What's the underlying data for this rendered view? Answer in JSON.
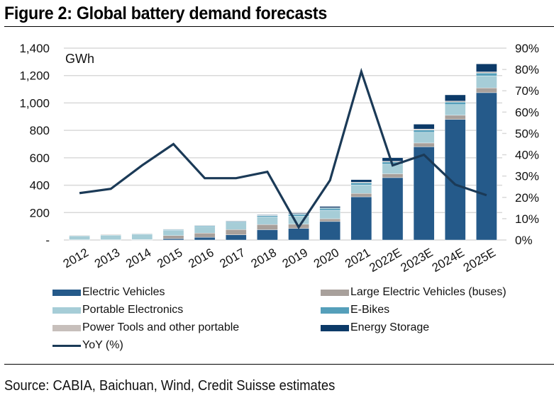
{
  "header": {
    "title": "Figure 2: Global battery demand forecasts"
  },
  "footer": {
    "source": "Source: CABIA, Baichuan, Wind, Credit Suisse estimates"
  },
  "chart_data": {
    "type": "bar",
    "stacked": true,
    "title": "Figure 2: Global battery demand forecasts",
    "unit_label": "GWh",
    "categories": [
      "2012",
      "2013",
      "2014",
      "2015",
      "2016",
      "2017",
      "2018",
      "2019",
      "2020",
      "2021",
      "2022E",
      "2023E",
      "2024E",
      "2025E"
    ],
    "y_left": {
      "range": [
        0,
        1400
      ],
      "ticks": [
        0,
        200,
        400,
        600,
        800,
        1000,
        1200,
        1400
      ],
      "tick_labels": [
        "-",
        "200",
        "400",
        "600",
        "800",
        "1,000",
        "1,200",
        "1,400"
      ]
    },
    "y_right": {
      "range": [
        0,
        90
      ],
      "ticks": [
        0,
        10,
        20,
        30,
        40,
        50,
        60,
        70,
        80,
        90
      ],
      "tick_labels": [
        "0%",
        "10%",
        "20%",
        "30%",
        "40%",
        "50%",
        "60%",
        "70%",
        "80%",
        "90%"
      ]
    },
    "grid": true,
    "legend_position": "bottom",
    "series": [
      {
        "name": "Electric Vehicles",
        "color": "#255A8A",
        "values": [
          1,
          1,
          2,
          10,
          20,
          38,
          75,
          85,
          135,
          315,
          455,
          680,
          880,
          1075
        ]
      },
      {
        "name": "Large Electric Vehicles (buses)",
        "color": "#A8A09B",
        "values": [
          1,
          1,
          1,
          22,
          30,
          38,
          38,
          30,
          20,
          25,
          28,
          28,
          30,
          35
        ]
      },
      {
        "name": "Portable Electronics",
        "color": "#A6CDD7",
        "values": [
          28,
          33,
          39,
          40,
          45,
          50,
          55,
          60,
          62,
          62,
          70,
          78,
          78,
          88
        ]
      },
      {
        "name": "E-Bikes",
        "color": "#559FBA",
        "values": [
          2,
          3,
          4,
          5,
          8,
          8,
          10,
          12,
          14,
          15,
          16,
          17,
          18,
          20
        ]
      },
      {
        "name": "Power Tools and other portable",
        "color": "#C7BFBB",
        "values": [
          4,
          4,
          3,
          3,
          3,
          3,
          3,
          3,
          4,
          5,
          6,
          7,
          8,
          9
        ]
      },
      {
        "name": "Energy Storage",
        "color": "#0C3A68",
        "values": [
          0,
          0,
          0,
          0,
          2,
          3,
          4,
          5,
          10,
          18,
          25,
          35,
          45,
          58
        ]
      }
    ],
    "line_series": {
      "name": "YoY (%)",
      "axis": "right",
      "color": "#1B3A57",
      "values": [
        22,
        24,
        35,
        45,
        29,
        29,
        32,
        6,
        28,
        79,
        35,
        40,
        26,
        21
      ]
    }
  },
  "legend": {
    "left": [
      "Electric Vehicles",
      "Portable Electronics",
      "Power Tools and other portable",
      "YoY (%)"
    ],
    "right": [
      "Large Electric Vehicles (buses)",
      "E-Bikes",
      "Energy Storage"
    ]
  }
}
